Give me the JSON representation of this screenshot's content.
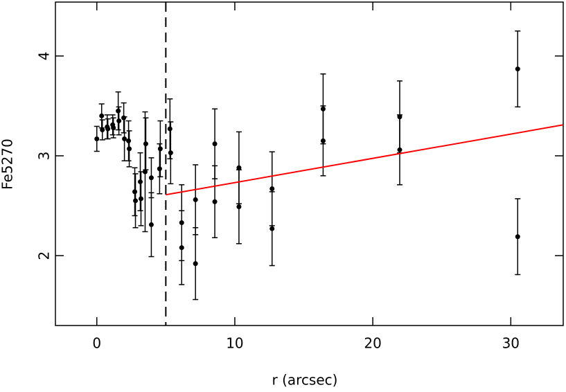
{
  "chart_data": {
    "type": "scatter",
    "xlabel": "r (arcsec)",
    "ylabel": "Fe5270",
    "xlim": [
      -3,
      33.8
    ],
    "ylim": [
      1.3,
      4.54
    ],
    "xticks": [
      0,
      10,
      20,
      30
    ],
    "yticks": [
      2,
      3,
      4
    ],
    "series": [
      {
        "color": "#000000",
        "x": [
          0,
          0.35,
          0.4,
          0.75,
          0.8,
          1.15,
          1.2,
          1.55,
          1.6,
          1.95,
          2.0,
          2.3,
          2.35,
          2.75,
          2.8,
          3.15,
          3.2,
          3.5,
          3.55,
          3.95,
          3.95,
          4.55,
          4.6,
          5.3,
          5.35,
          6.15,
          6.15,
          7.15,
          7.15,
          8.55,
          8.55,
          10.3,
          10.3,
          12.7,
          12.7,
          16.4,
          16.4,
          21.95,
          21.95,
          30.5,
          30.5
        ],
        "values": [
          3.17,
          3.4,
          3.26,
          3.29,
          3.27,
          3.31,
          3.28,
          3.45,
          3.35,
          3.38,
          3.17,
          3.15,
          3.07,
          2.64,
          2.55,
          2.74,
          2.57,
          2.84,
          3.12,
          2.78,
          2.31,
          2.87,
          3.07,
          3.27,
          3.03,
          2.33,
          2.08,
          2.56,
          1.92,
          3.12,
          2.54,
          2.88,
          2.49,
          2.67,
          2.27,
          3.47,
          3.15,
          3.39,
          3.06,
          3.87,
          2.19
        ],
        "errors": [
          0.125,
          0.12,
          0.1,
          0.12,
          0.1,
          0.1,
          0.1,
          0.19,
          0.14,
          0.15,
          0.22,
          0.2,
          0.18,
          0.24,
          0.27,
          0.29,
          0.27,
          0.6,
          0.26,
          0.2,
          0.32,
          0.25,
          0.28,
          0.3,
          0.31,
          0.38,
          0.37,
          0.35,
          0.36,
          0.35,
          0.36,
          0.36,
          0.37,
          0.37,
          0.37,
          0.35,
          0.35,
          0.36,
          0.35,
          0.38,
          0.38
        ]
      }
    ],
    "fit": {
      "color": "#ff0000",
      "x": [
        5,
        33.8
      ],
      "values": [
        2.61,
        3.31
      ]
    },
    "vline": {
      "x": 5,
      "style": "dashed"
    }
  }
}
